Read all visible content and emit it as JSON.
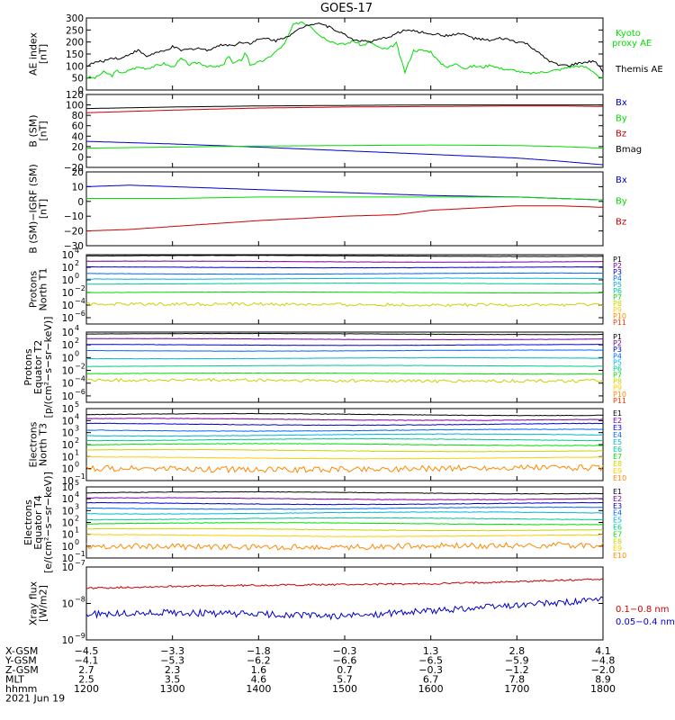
{
  "title": "GOES-17",
  "colors": {
    "black": "#000000",
    "green": "#00dd00",
    "blue": "#0000cc",
    "red": "#cc0000",
    "P": [
      "#000000",
      "#7a0099",
      "#0000cc",
      "#0066ff",
      "#00b5d6",
      "#00c890",
      "#00dd00",
      "#c8d400",
      "#ffcc00",
      "#ff8800",
      "#ff3300",
      "#cc0000"
    ],
    "E": [
      "#000000",
      "#7a0099",
      "#0000cc",
      "#0066ff",
      "#00b5d6",
      "#00c890",
      "#00dd00",
      "#c8d400",
      "#ffcc00",
      "#ff8800",
      "#cc0000"
    ]
  },
  "chart_data": [
    {
      "type": "line",
      "id": "ae",
      "ylabel": [
        "AE index",
        "[nT]"
      ],
      "ylim": [
        0,
        300
      ],
      "ticks": [
        "0",
        "50",
        "100",
        "150",
        "200",
        "250",
        "300"
      ],
      "x_hours": [
        12.0,
        18.0
      ],
      "series": [
        {
          "name": "Kyoto proxy AE",
          "label_lines": [
            "Kyoto",
            "proxy AE"
          ],
          "color": "green",
          "x": [
            12.0,
            12.1,
            12.2,
            12.3,
            12.35,
            12.45,
            12.5,
            12.6,
            12.7,
            12.8,
            12.9,
            13.0,
            13.1,
            13.2,
            13.3,
            13.4,
            13.5,
            13.6,
            13.65,
            13.7,
            13.8,
            13.85,
            13.9,
            14.0,
            14.1,
            14.2,
            14.3,
            14.4,
            14.5,
            14.55,
            14.6,
            14.7,
            14.8,
            14.9,
            15.0,
            15.1,
            15.2,
            15.3,
            15.4,
            15.5,
            15.6,
            15.65,
            15.7,
            15.8,
            15.9,
            16.0,
            16.1,
            16.2,
            16.3,
            16.4,
            16.5,
            16.6,
            16.7,
            16.8,
            16.9,
            17.0,
            17.1,
            17.2,
            17.3,
            17.4,
            17.5,
            17.6,
            17.7,
            17.8,
            17.9,
            17.95,
            18.0
          ],
          "y": [
            55,
            50,
            75,
            60,
            80,
            70,
            85,
            95,
            90,
            100,
            110,
            95,
            130,
            105,
            115,
            100,
            95,
            105,
            150,
            110,
            125,
            160,
            105,
            115,
            130,
            160,
            190,
            270,
            285,
            275,
            270,
            230,
            210,
            195,
            190,
            205,
            185,
            200,
            175,
            170,
            195,
            130,
            75,
            165,
            165,
            160,
            115,
            95,
            110,
            90,
            100,
            95,
            105,
            90,
            85,
            80,
            70,
            70,
            75,
            80,
            85,
            95,
            100,
            95,
            75,
            55,
            45
          ]
        },
        {
          "name": "Themis AE",
          "color": "black",
          "x": [
            12.0,
            12.1,
            12.2,
            12.3,
            12.4,
            12.5,
            12.6,
            12.7,
            12.8,
            12.9,
            13.0,
            13.1,
            13.2,
            13.3,
            13.4,
            13.5,
            13.6,
            13.7,
            13.8,
            13.9,
            14.0,
            14.1,
            14.2,
            14.3,
            14.4,
            14.5,
            14.6,
            14.7,
            14.8,
            14.9,
            15.0,
            15.1,
            15.2,
            15.3,
            15.4,
            15.5,
            15.6,
            15.7,
            15.8,
            15.9,
            16.0,
            16.1,
            16.2,
            16.3,
            16.4,
            16.5,
            16.6,
            16.7,
            16.8,
            16.9,
            17.0,
            17.1,
            17.2,
            17.3,
            17.4,
            17.5,
            17.6,
            17.7,
            17.8,
            17.9,
            18.0
          ],
          "y": [
            100,
            115,
            120,
            135,
            130,
            150,
            165,
            140,
            155,
            160,
            180,
            165,
            170,
            175,
            165,
            180,
            190,
            185,
            200,
            195,
            210,
            215,
            205,
            220,
            235,
            260,
            275,
            280,
            265,
            250,
            230,
            210,
            205,
            200,
            210,
            220,
            235,
            250,
            245,
            240,
            235,
            230,
            225,
            235,
            230,
            215,
            210,
            205,
            215,
            210,
            200,
            195,
            170,
            140,
            115,
            105,
            100,
            110,
            115,
            120,
            80
          ]
        }
      ]
    },
    {
      "type": "line",
      "id": "bsm",
      "ylabel": [
        "B (SM)",
        "[nT]"
      ],
      "ylim": [
        -20,
        120
      ],
      "ticks": [
        "−20",
        "0",
        "20",
        "40",
        "60",
        "80",
        "100",
        "120"
      ],
      "x_hours": [
        12.0,
        18.0
      ],
      "series": [
        {
          "name": "Bx",
          "color": "blue",
          "x": [
            12.0,
            13.0,
            14.0,
            15.0,
            16.0,
            17.0,
            17.5,
            18.0
          ],
          "y": [
            30,
            25,
            19,
            12,
            5,
            -2,
            -8,
            -15
          ]
        },
        {
          "name": "By",
          "color": "green",
          "x": [
            12.0,
            13.0,
            14.0,
            15.0,
            16.0,
            17.0,
            17.5,
            18.0
          ],
          "y": [
            17,
            19,
            21,
            22,
            23,
            22,
            20,
            17
          ]
        },
        {
          "name": "Bz",
          "color": "red",
          "x": [
            12.0,
            13.0,
            14.0,
            15.0,
            16.0,
            17.0,
            17.5,
            18.0
          ],
          "y": [
            85,
            90,
            94,
            96,
            97,
            98,
            98,
            97
          ]
        },
        {
          "name": "Bmag",
          "color": "black",
          "x": [
            12.0,
            13.0,
            14.0,
            15.0,
            16.0,
            17.0,
            17.5,
            18.0
          ],
          "y": [
            93,
            96,
            98,
            99,
            100,
            100,
            100,
            100
          ]
        }
      ]
    },
    {
      "type": "line",
      "id": "bigrf",
      "ylabel": [
        "B (SM)−IGRF (SM)",
        "[nT]"
      ],
      "ylim": [
        -30,
        20
      ],
      "ticks": [
        "−30",
        "−20",
        "−10",
        "0",
        "10",
        "20"
      ],
      "x_hours": [
        12.0,
        18.0
      ],
      "series": [
        {
          "name": "Bx",
          "color": "blue",
          "x": [
            12.0,
            12.5,
            13.0,
            14.0,
            15.0,
            16.0,
            17.0,
            17.5,
            18.0
          ],
          "y": [
            10,
            11,
            10,
            8,
            6,
            4,
            3,
            2,
            1
          ]
        },
        {
          "name": "By",
          "color": "green",
          "x": [
            12.0,
            13.0,
            14.0,
            15.0,
            16.0,
            17.0,
            17.5,
            18.0
          ],
          "y": [
            2,
            2,
            3,
            3,
            3,
            3,
            2,
            1
          ]
        },
        {
          "name": "Bz",
          "color": "red",
          "x": [
            12.0,
            12.5,
            13.0,
            14.0,
            15.0,
            15.6,
            16.0,
            17.0,
            17.5,
            18.0
          ],
          "y": [
            -20,
            -19,
            -17,
            -13,
            -10,
            -9,
            -6,
            -3,
            -3,
            -4
          ]
        }
      ]
    },
    {
      "type": "line",
      "id": "pn",
      "log": true,
      "ylabel": [
        "Protons",
        "North T1"
      ],
      "ymin_exp": -7,
      "ymax_exp": 4,
      "ticks": [
        {
          "label": "10",
          "exp": "4",
          "e": 4
        },
        {
          "label": "10",
          "exp": "2",
          "e": 2
        },
        {
          "label": "10",
          "exp": "0",
          "e": 0
        },
        {
          "label": "10",
          "exp": "−2",
          "e": -2
        },
        {
          "label": "10",
          "exp": "−4",
          "e": -4
        },
        {
          "label": "10",
          "exp": "−6",
          "e": -6
        }
      ],
      "x_hours": [
        12.0,
        18.0
      ],
      "channels": [
        "P1",
        "P2",
        "P3",
        "P4",
        "P5",
        "P6",
        "P7",
        "P8",
        "P9",
        "P10",
        "P11"
      ],
      "levels_exp": [
        3.8,
        2.9,
        2.0,
        1.0,
        0.2,
        -0.6,
        -2.0,
        -3.9,
        -7.0,
        -7.0,
        -7.0
      ],
      "noisy": [
        false,
        false,
        false,
        false,
        false,
        false,
        false,
        true,
        false,
        false,
        false
      ]
    },
    {
      "type": "line",
      "id": "pe",
      "log": true,
      "ylabel": [
        "Protons",
        "Equator T2",
        "[p/(cm²−s−sr−keV)]"
      ],
      "ymin_exp": -7,
      "ymax_exp": 4,
      "ticks": [
        {
          "label": "10",
          "exp": "4",
          "e": 4
        },
        {
          "label": "10",
          "exp": "2",
          "e": 2
        },
        {
          "label": "10",
          "exp": "0",
          "e": 0
        },
        {
          "label": "10",
          "exp": "−2",
          "e": -2
        },
        {
          "label": "10",
          "exp": "−4",
          "e": -4
        },
        {
          "label": "10",
          "exp": "−6",
          "e": -6
        }
      ],
      "x_hours": [
        12.0,
        18.0
      ],
      "channels": [
        "P1",
        "P2",
        "P3",
        "P4",
        "P5",
        "P6",
        "P7",
        "P8",
        "P9",
        "P10",
        "P11"
      ],
      "levels_exp": [
        3.7,
        2.9,
        2.0,
        1.1,
        -0.1,
        -1.3,
        -2.5,
        -3.6,
        -7.0,
        -7.0,
        -7.0
      ],
      "noisy": [
        false,
        false,
        false,
        false,
        false,
        false,
        false,
        true,
        false,
        false,
        false
      ]
    },
    {
      "type": "line",
      "id": "en",
      "log": true,
      "ylabel": [
        "Electrons",
        "North T3"
      ],
      "ymin_exp": -1,
      "ymax_exp": 5,
      "ticks": [
        {
          "label": "10",
          "exp": "5",
          "e": 5
        },
        {
          "label": "10",
          "exp": "4",
          "e": 4
        },
        {
          "label": "10",
          "exp": "3",
          "e": 3
        },
        {
          "label": "10",
          "exp": "2",
          "e": 2
        },
        {
          "label": "10",
          "exp": "1",
          "e": 1
        },
        {
          "label": "10",
          "exp": "0",
          "e": 0
        },
        {
          "label": "10",
          "exp": "−1",
          "e": -1
        }
      ],
      "x_hours": [
        12.0,
        18.0
      ],
      "channels": [
        "E1",
        "E2",
        "E3",
        "E4",
        "E5",
        "E6",
        "E7",
        "E8",
        "E9",
        "E10"
      ],
      "levels_exp": [
        4.5,
        4.1,
        3.7,
        3.2,
        2.8,
        2.4,
        2.0,
        1.5,
        0.9,
        0.0
      ],
      "noisy": [
        false,
        false,
        false,
        false,
        false,
        false,
        false,
        false,
        false,
        true
      ]
    },
    {
      "type": "line",
      "id": "ee",
      "log": true,
      "ylabel": [
        "Electrons",
        "Equator T4",
        "[e/(cm²−s−sr−keV)]"
      ],
      "ymin_exp": -1,
      "ymax_exp": 5,
      "ticks": [
        {
          "label": "10",
          "exp": "5",
          "e": 5
        },
        {
          "label": "10",
          "exp": "4",
          "e": 4
        },
        {
          "label": "10",
          "exp": "3",
          "e": 3
        },
        {
          "label": "10",
          "exp": "2",
          "e": 2
        },
        {
          "label": "10",
          "exp": "1",
          "e": 1
        },
        {
          "label": "10",
          "exp": "0",
          "e": 0
        },
        {
          "label": "10",
          "exp": "−1",
          "e": -1
        }
      ],
      "x_hours": [
        12.0,
        18.0
      ],
      "channels": [
        "E1",
        "E2",
        "E3",
        "E4",
        "E5",
        "E6",
        "E7",
        "E8",
        "E9",
        "E10"
      ],
      "levels_exp": [
        4.5,
        4.0,
        3.6,
        3.2,
        2.8,
        2.3,
        1.9,
        1.4,
        0.9,
        0.0
      ],
      "noisy": [
        false,
        false,
        false,
        false,
        false,
        false,
        false,
        false,
        false,
        true
      ]
    },
    {
      "type": "line",
      "id": "xray",
      "log": true,
      "ylabel": [
        "Xray flux",
        "[W/m2]"
      ],
      "ymin_exp": -9,
      "ymax_exp": -7,
      "ticks": [
        {
          "label": "10",
          "exp": "−7",
          "e": -7
        },
        {
          "label": "10",
          "exp": "−8",
          "e": -8
        },
        {
          "label": "10",
          "exp": "−9",
          "e": -9
        }
      ],
      "x_hours": [
        12.0,
        18.0
      ],
      "series": [
        {
          "name": "0.1−0.8 nm",
          "color": "red",
          "x": [
            12.0,
            13.0,
            14.0,
            15.0,
            16.0,
            17.0,
            18.0
          ],
          "y_exp": [
            -7.58,
            -7.53,
            -7.5,
            -7.48,
            -7.46,
            -7.4,
            -7.33
          ]
        },
        {
          "name": "0.05−0.4 nm",
          "color": "blue",
          "x": [
            12.0,
            13.0,
            14.0,
            15.0,
            16.0,
            17.0,
            18.0
          ],
          "y_exp": [
            -8.3,
            -8.25,
            -8.3,
            -8.35,
            -8.2,
            -8.05,
            -7.9
          ]
        }
      ]
    }
  ],
  "x_axis": {
    "rows": [
      {
        "label": "X-GSM",
        "values": [
          "−4.5",
          "−3.3",
          "−1.8",
          "−0.3",
          "1.3",
          "2.8",
          "4.1"
        ]
      },
      {
        "label": "Y-GSM",
        "values": [
          "−4.1",
          "−5.3",
          "−6.2",
          "−6.6",
          "−6.5",
          "−5.9",
          "−4.8"
        ]
      },
      {
        "label": "Z-GSM",
        "values": [
          "2.7",
          "2.3",
          "1.6",
          "0.7",
          "−0.3",
          "−1.2",
          "−2.0"
        ]
      },
      {
        "label": "MLT",
        "values": [
          "2.5",
          "3.5",
          "4.6",
          "5.7",
          "6.7",
          "7.8",
          "8.9"
        ]
      },
      {
        "label": "hhmm",
        "values": [
          "1200",
          "1300",
          "1400",
          "1500",
          "1600",
          "1700",
          "1800"
        ]
      }
    ],
    "date": "2021 Jun 19"
  }
}
